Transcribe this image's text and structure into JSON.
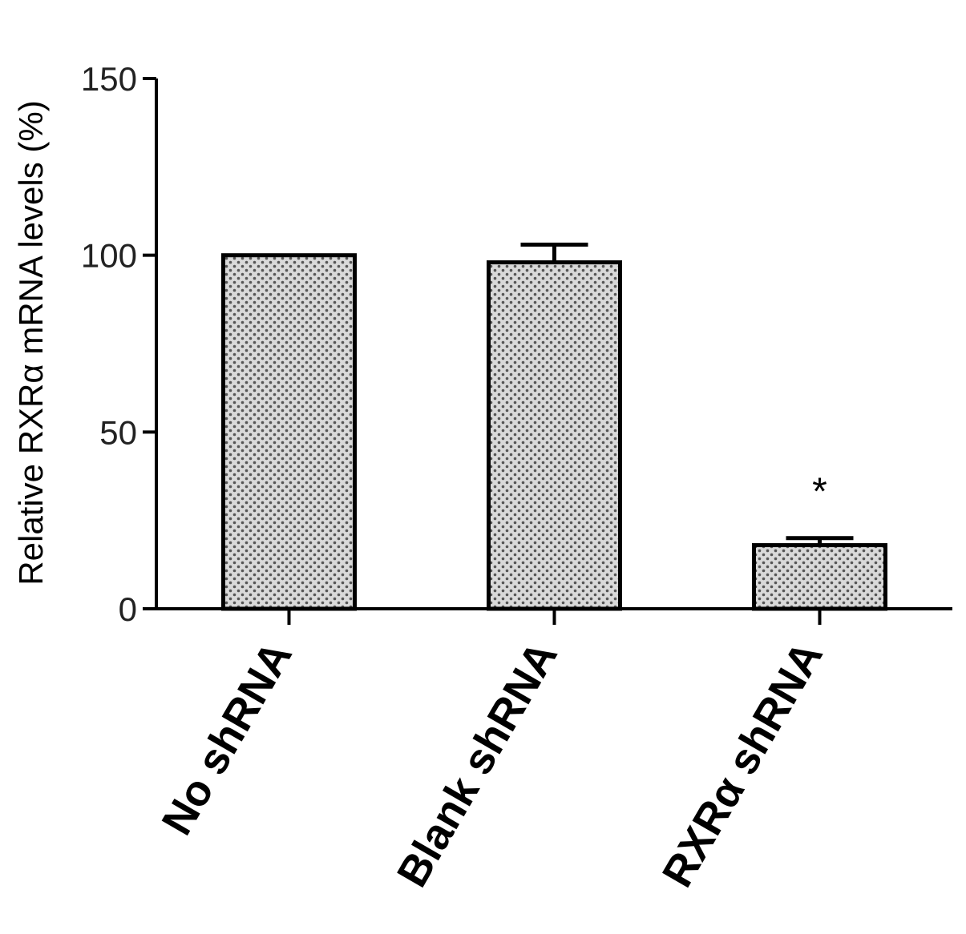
{
  "chart_data": {
    "type": "bar",
    "title": "",
    "xlabel": "",
    "ylabel": "Relative RXRα mRNA levels (%)",
    "ylim": [
      0,
      150
    ],
    "yticks": [
      "0",
      "50",
      "100",
      "150"
    ],
    "categories": [
      "No shRNA",
      "Blank shRNA",
      "RXRα shRNA"
    ],
    "values": [
      100,
      98,
      18
    ],
    "errors": [
      0,
      5,
      2
    ],
    "annotations": [
      "",
      "",
      "*"
    ],
    "grid": false,
    "legend": "none",
    "bar_fill": "#d9d9d9",
    "pattern_dot": "#555555"
  }
}
